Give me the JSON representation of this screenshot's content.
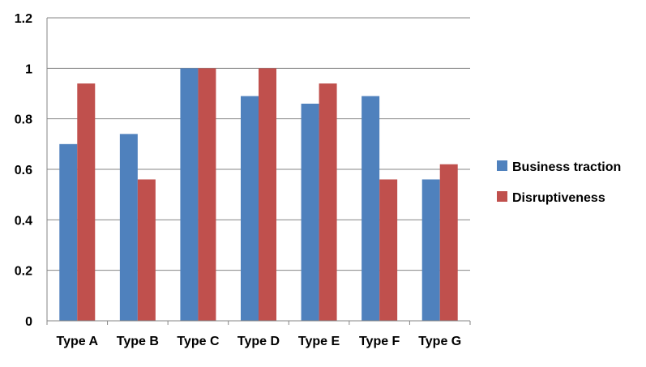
{
  "chart_data": {
    "type": "bar",
    "title": "",
    "xlabel": "",
    "ylabel": "",
    "categories": [
      "Type A",
      "Type B",
      "Type C",
      "Type D",
      "Type E",
      "Type F",
      "Type G"
    ],
    "series": [
      {
        "name": "Business traction",
        "color": "#4F81BD",
        "values": [
          0.7,
          0.74,
          1.0,
          0.89,
          0.86,
          0.89,
          0.56
        ]
      },
      {
        "name": "Disruptiveness",
        "color": "#C0504D",
        "values": [
          0.94,
          0.56,
          1.0,
          1.0,
          0.94,
          0.56,
          0.62
        ]
      }
    ],
    "ylim": [
      0,
      1.2
    ],
    "yticks": [
      "0",
      "0.2",
      "0.4",
      "0.6",
      "0.8",
      "1",
      "1.2"
    ],
    "ytick_values": [
      0,
      0.2,
      0.4,
      0.6,
      0.8,
      1.0,
      1.2
    ],
    "grid": true,
    "legend_position": "right",
    "gridline_color": "#868686"
  }
}
